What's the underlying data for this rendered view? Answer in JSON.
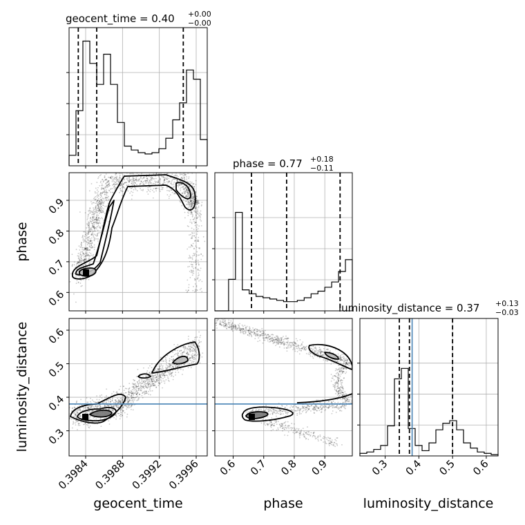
{
  "chart_data": {
    "type": "corner",
    "params": [
      "geocent_time",
      "phase",
      "luminosity_distance"
    ],
    "grid": true,
    "injection_color": "#4682b4",
    "injection": {
      "luminosity_distance": 0.38
    },
    "titles": [
      {
        "param": "geocent_time",
        "prefix": "geocent_time = ",
        "value": "0.40",
        "plus": "+0.00",
        "minus": "−0.00"
      },
      {
        "param": "phase",
        "prefix": "phase = ",
        "value": "0.77",
        "plus": "+0.18",
        "minus": "−0.11"
      },
      {
        "param": "luminosity_distance",
        "prefix": "luminosity_distance = ",
        "value": "0.37",
        "plus": "+0.13",
        "minus": "−0.03"
      }
    ],
    "axis_labels": {
      "geocent_time": "geocent_time",
      "phase": "phase",
      "luminosity_distance": "luminosity_distance"
    },
    "ranges": {
      "geocent_time": [
        0.39822,
        0.39972
      ],
      "phase": [
        0.54,
        0.99
      ],
      "luminosity_distance": [
        0.225,
        0.635
      ]
    },
    "ticks": {
      "geocent_time": [
        0.3984,
        0.3988,
        0.3992,
        0.3996
      ],
      "phase": [
        0.6,
        0.7,
        0.8,
        0.9
      ],
      "luminosity_distance": [
        0.3,
        0.4,
        0.5,
        0.6
      ]
    },
    "tick_labels": {
      "geocent_time": [
        "0.3984",
        "0.3988",
        "0.3992",
        "0.3996"
      ],
      "phase": [
        "0.6",
        "0.7",
        "0.8",
        "0.9"
      ],
      "luminosity_distance": [
        "0.3",
        "0.4",
        "0.5",
        "0.6"
      ]
    },
    "quantiles": {
      "geocent_time": [
        0.39832,
        0.39852,
        0.39946
      ],
      "phase": [
        0.66,
        0.775,
        0.95
      ],
      "luminosity_distance": [
        0.342,
        0.372,
        0.5
      ]
    },
    "hist": {
      "geocent_time": [
        0.08,
        0.42,
        0.95,
        0.78,
        0.62,
        0.85,
        0.62,
        0.33,
        0.15,
        0.12,
        0.1,
        0.09,
        0.1,
        0.13,
        0.21,
        0.35,
        0.48,
        0.73,
        0.66,
        0.2
      ],
      "phase": [
        0.0,
        0.0,
        0.24,
        0.75,
        0.16,
        0.13,
        0.11,
        0.1,
        0.09,
        0.08,
        0.07,
        0.07,
        0.08,
        0.1,
        0.13,
        0.15,
        0.18,
        0.22,
        0.3,
        0.39
      ],
      "luminosity_distance": [
        0.02,
        0.03,
        0.05,
        0.08,
        0.23,
        0.59,
        0.67,
        0.21,
        0.08,
        0.04,
        0.1,
        0.2,
        0.25,
        0.27,
        0.2,
        0.1,
        0.06,
        0.03,
        0.02,
        0.01
      ]
    }
  }
}
